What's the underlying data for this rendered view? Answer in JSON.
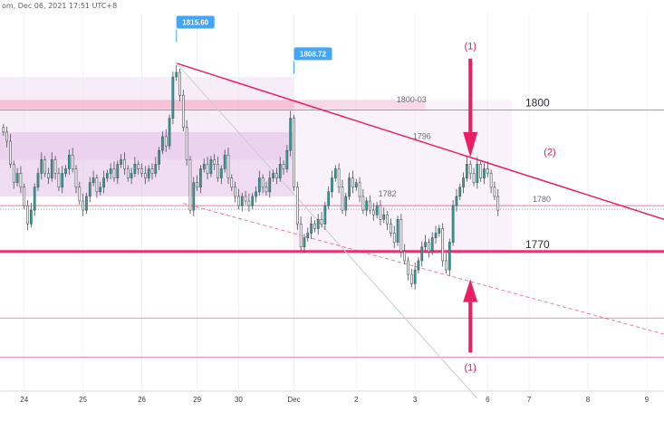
{
  "header": {
    "text": "om, Dec 06, 2021 17:51 UTC+8"
  },
  "colors": {
    "up": "#26a69a",
    "down": "#26a69a",
    "candle": "#4a4f58",
    "pink": "#e91e63",
    "pink_light": "#f48fb1",
    "zone": "#f3e5f5",
    "zone_dark": "#e1bee7",
    "callout": "#42a5f5"
  },
  "levels": [
    {
      "name": "level-1800",
      "label": "1800",
      "price": 1800.8,
      "weight": "thin"
    },
    {
      "name": "level-1780",
      "label": "1780",
      "price": 1780,
      "weight": "thin"
    },
    {
      "name": "level-1770",
      "label": "1770",
      "price": 1770,
      "weight": "thick"
    }
  ],
  "zone_labels": [
    {
      "name": "zone-label-1800-03",
      "text": "1800-03",
      "price": 1802.5,
      "x_index": 118
    },
    {
      "name": "zone-label-1796",
      "text": "1796",
      "price": 1794.5,
      "x_index": 121
    },
    {
      "name": "zone-label-1782",
      "text": "1782",
      "price": 1782,
      "x_index": 111
    }
  ],
  "callouts": [
    {
      "name": "callout-high-1",
      "text": "1815.60",
      "index": 50,
      "price": 1815.6
    },
    {
      "name": "callout-high-2",
      "text": "1808.72",
      "index": 84,
      "price": 1808.72
    }
  ],
  "annotations": [
    {
      "name": "annotation-1-top",
      "text": "(1)",
      "index": 135,
      "price": 1814
    },
    {
      "name": "annotation-2",
      "text": "(2)",
      "index": 158,
      "price": 1791
    },
    {
      "name": "annotation-1-bottom",
      "text": "(1)",
      "index": 135,
      "price": 1744
    }
  ],
  "chart_data": {
    "type": "candlestick",
    "title": "",
    "xlabel": "",
    "ylabel": "",
    "ylim": [
      1740,
      1822
    ],
    "x_ticks": [
      {
        "label": "24",
        "index": 6
      },
      {
        "label": "25",
        "index": 23
      },
      {
        "label": "26",
        "index": 40
      },
      {
        "label": "29",
        "index": 56
      },
      {
        "label": "30",
        "index": 68
      },
      {
        "label": "Dec",
        "index": 84
      },
      {
        "label": "2",
        "index": 102
      },
      {
        "label": "3",
        "index": 119
      },
      {
        "label": "6",
        "index": 140
      },
      {
        "label": "7",
        "index": 152
      },
      {
        "label": "8",
        "index": 169
      },
      {
        "label": "9",
        "index": 186
      }
    ],
    "x_index_range": [
      -1,
      191
    ],
    "closes": [
      1796,
      1794,
      1789,
      1785,
      1787,
      1784,
      1780,
      1776,
      1779,
      1784,
      1787,
      1790,
      1787,
      1786,
      1790,
      1787,
      1784,
      1787,
      1788,
      1791,
      1788,
      1784,
      1781,
      1779,
      1782,
      1785,
      1786,
      1783,
      1784,
      1786,
      1787,
      1788,
      1786,
      1789,
      1790,
      1788,
      1786,
      1787,
      1789,
      1788,
      1787,
      1786,
      1788,
      1787,
      1789,
      1792,
      1795,
      1793,
      1799,
      1808,
      1809,
      1804,
      1797,
      1790,
      1779,
      1785,
      1784,
      1788,
      1789,
      1787,
      1790,
      1789,
      1786,
      1788,
      1791,
      1786,
      1784,
      1782,
      1780,
      1782,
      1781,
      1780,
      1782,
      1783,
      1786,
      1784,
      1783,
      1786,
      1787,
      1786,
      1789,
      1788,
      1792,
      1799,
      1784,
      1776,
      1771,
      1773,
      1774,
      1776,
      1775,
      1777,
      1776,
      1780,
      1783,
      1786,
      1788,
      1784,
      1779,
      1782,
      1786,
      1784,
      1785,
      1782,
      1779,
      1781,
      1779,
      1778,
      1780,
      1777,
      1778,
      1776,
      1774,
      1772,
      1777,
      1770,
      1768,
      1765,
      1763,
      1766,
      1768,
      1771,
      1772,
      1770,
      1773,
      1774,
      1775,
      1768,
      1766,
      1772,
      1780,
      1782,
      1784,
      1786,
      1789,
      1787,
      1785,
      1789,
      1786,
      1788,
      1787,
      1784,
      1782,
      1779
    ],
    "opens": [
      1797,
      1796,
      1794,
      1789,
      1785,
      1787,
      1784,
      1780,
      1776,
      1779,
      1784,
      1787,
      1790,
      1787,
      1786,
      1790,
      1787,
      1784,
      1787,
      1788,
      1791,
      1788,
      1784,
      1781,
      1779,
      1782,
      1785,
      1786,
      1783,
      1784,
      1786,
      1787,
      1788,
      1786,
      1789,
      1790,
      1788,
      1786,
      1787,
      1789,
      1788,
      1787,
      1786,
      1788,
      1787,
      1789,
      1792,
      1795,
      1793,
      1799,
      1808,
      1809,
      1804,
      1797,
      1790,
      1779,
      1785,
      1784,
      1788,
      1789,
      1787,
      1790,
      1789,
      1786,
      1788,
      1791,
      1786,
      1784,
      1782,
      1780,
      1782,
      1781,
      1780,
      1782,
      1783,
      1786,
      1784,
      1783,
      1786,
      1787,
      1786,
      1789,
      1788,
      1792,
      1799,
      1784,
      1776,
      1771,
      1773,
      1774,
      1776,
      1775,
      1777,
      1776,
      1780,
      1783,
      1786,
      1788,
      1784,
      1779,
      1782,
      1786,
      1784,
      1785,
      1782,
      1779,
      1781,
      1779,
      1778,
      1780,
      1777,
      1778,
      1776,
      1774,
      1772,
      1777,
      1770,
      1768,
      1765,
      1763,
      1766,
      1768,
      1771,
      1772,
      1770,
      1773,
      1774,
      1775,
      1768,
      1766,
      1772,
      1780,
      1782,
      1784,
      1786,
      1789,
      1787,
      1785,
      1789,
      1786,
      1788,
      1787,
      1784,
      1782
    ],
    "trendlines": [
      {
        "name": "resistance-trendline",
        "from": {
          "index": 50,
          "price": 1811
        },
        "to": {
          "index": 191,
          "price": 1777
        },
        "style": "solid"
      },
      {
        "name": "support-trendline",
        "from": {
          "index": 52,
          "price": 1780.5
        },
        "to": {
          "index": 191,
          "price": 1752
        },
        "style": "dashed"
      }
    ]
  }
}
